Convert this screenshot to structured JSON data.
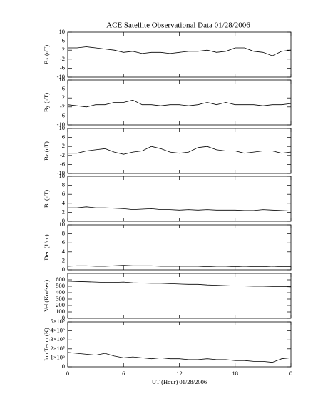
{
  "chart_data": [
    {
      "type": "line",
      "title": "ACE Satellite Observational Data   01/28/2006",
      "ylabel": "Bx (nT)",
      "color": "#000000",
      "x": [
        0,
        1,
        2,
        3,
        4,
        5,
        6,
        7,
        8,
        9,
        10,
        11,
        12,
        13,
        14,
        15,
        16,
        17,
        18,
        19,
        20,
        21,
        22,
        23,
        24
      ],
      "values": [
        3,
        3,
        3.5,
        3,
        2.5,
        2,
        1,
        1.5,
        0.5,
        1,
        1,
        0.5,
        1,
        1.5,
        1.5,
        2,
        1,
        1.5,
        3,
        3,
        1.5,
        1,
        -0.5,
        1.5,
        2
      ],
      "ylim": [
        -10,
        10
      ],
      "yticks": [
        -10,
        -6,
        -2,
        2,
        6,
        10
      ]
    },
    {
      "type": "line",
      "ylabel": "By (nT)",
      "color": "#000000",
      "x": [
        0,
        1,
        2,
        3,
        4,
        5,
        6,
        7,
        8,
        9,
        10,
        11,
        12,
        13,
        14,
        15,
        16,
        17,
        18,
        19,
        20,
        21,
        22,
        23,
        24
      ],
      "values": [
        -1,
        -1.5,
        -2,
        -1,
        -1,
        0,
        0,
        1,
        -1,
        -1,
        -1.5,
        -1,
        -1,
        -1.5,
        -1,
        0,
        -1,
        0,
        -1,
        -1,
        -1,
        -1.5,
        -1,
        -1,
        -0.5
      ],
      "ylim": [
        -10,
        10
      ],
      "yticks": [
        -10,
        -6,
        -2,
        2,
        6,
        10
      ]
    },
    {
      "type": "line",
      "ylabel": "Bz (nT)",
      "color": "#000000",
      "x": [
        0,
        1,
        2,
        3,
        4,
        5,
        6,
        7,
        8,
        9,
        10,
        11,
        12,
        13,
        14,
        15,
        16,
        17,
        18,
        19,
        20,
        21,
        22,
        23,
        24
      ],
      "values": [
        -1,
        -1,
        0,
        0.5,
        1,
        -0.5,
        -1.5,
        -0.5,
        0,
        2,
        1,
        -0.5,
        -1,
        -0.5,
        1.5,
        2,
        0.5,
        0,
        0,
        -1,
        -0.5,
        0,
        0,
        -1,
        -0.5
      ],
      "ylim": [
        -10,
        10
      ],
      "yticks": [
        -10,
        -6,
        -2,
        2,
        6,
        10
      ]
    },
    {
      "type": "line",
      "ylabel": "Bt (nT)",
      "color": "#000000",
      "x": [
        0,
        1,
        2,
        3,
        4,
        5,
        6,
        7,
        8,
        9,
        10,
        11,
        12,
        13,
        14,
        15,
        16,
        17,
        18,
        19,
        20,
        21,
        22,
        23,
        24
      ],
      "values": [
        3,
        3,
        3.2,
        3,
        3,
        2.9,
        2.8,
        2.6,
        2.7,
        2.8,
        2.6,
        2.6,
        2.5,
        2.6,
        2.5,
        2.6,
        2.5,
        2.5,
        2.5,
        2.4,
        2.4,
        2.6,
        2.5,
        2.4,
        2.3
      ],
      "ylim": [
        0,
        10
      ],
      "yticks": [
        0,
        2,
        4,
        6,
        8,
        10
      ]
    },
    {
      "type": "line",
      "ylabel": "Den (1/cc)",
      "color": "#000000",
      "x": [
        0,
        1,
        2,
        3,
        4,
        5,
        6,
        7,
        8,
        9,
        10,
        11,
        12,
        13,
        14,
        15,
        16,
        17,
        18,
        19,
        20,
        21,
        22,
        23,
        24
      ],
      "values": [
        0.8,
        0.9,
        0.9,
        0.8,
        0.8,
        0.9,
        1,
        0.9,
        0.9,
        0.9,
        0.8,
        0.8,
        0.8,
        0.8,
        0.8,
        0.7,
        0.8,
        0.8,
        0.7,
        0.8,
        0.7,
        0.7,
        0.8,
        0.7,
        0.7
      ],
      "ylim": [
        0,
        10
      ],
      "yticks": [
        0,
        2,
        4,
        6,
        8,
        10
      ]
    },
    {
      "type": "line",
      "ylabel": "Vel (Km/sec)",
      "color": "#000000",
      "x": [
        0,
        1,
        2,
        3,
        4,
        5,
        6,
        7,
        8,
        9,
        10,
        11,
        12,
        13,
        14,
        15,
        16,
        17,
        18,
        19,
        20,
        21,
        22,
        23,
        24
      ],
      "values": [
        580,
        575,
        570,
        565,
        560,
        560,
        565,
        555,
        550,
        545,
        545,
        540,
        535,
        530,
        530,
        520,
        515,
        510,
        505,
        505,
        500,
        500,
        495,
        495,
        490
      ],
      "ylim": [
        0,
        700
      ],
      "yticks": [
        0,
        100,
        200,
        300,
        400,
        500,
        600
      ]
    },
    {
      "type": "line",
      "ylabel": "Ion Temp (K)",
      "color": "#000000",
      "xlabel": "UT (Hour)  01/28/2006",
      "x": [
        0,
        1,
        2,
        3,
        4,
        5,
        6,
        7,
        8,
        9,
        10,
        11,
        12,
        13,
        14,
        15,
        16,
        17,
        18,
        19,
        20,
        21,
        22,
        23,
        24
      ],
      "values": [
        160000,
        150000,
        140000,
        130000,
        150000,
        120000,
        100000,
        110000,
        100000,
        90000,
        100000,
        90000,
        90000,
        80000,
        80000,
        90000,
        80000,
        80000,
        70000,
        70000,
        60000,
        60000,
        50000,
        90000,
        100000
      ],
      "ylim": [
        0,
        500000
      ],
      "yticks": [
        0,
        {
          "value": 100000,
          "label": "1×10⁵"
        },
        {
          "value": 200000,
          "label": "2×10⁵"
        },
        {
          "value": 300000,
          "label": "3×10⁵"
        },
        {
          "value": 400000,
          "label": "4×10⁵"
        },
        {
          "value": 500000,
          "label": "5×10⁵"
        }
      ],
      "xlim": [
        0,
        24
      ],
      "xticks": [
        0,
        6,
        12,
        18,
        {
          "value": 24,
          "label": "0"
        }
      ]
    }
  ]
}
